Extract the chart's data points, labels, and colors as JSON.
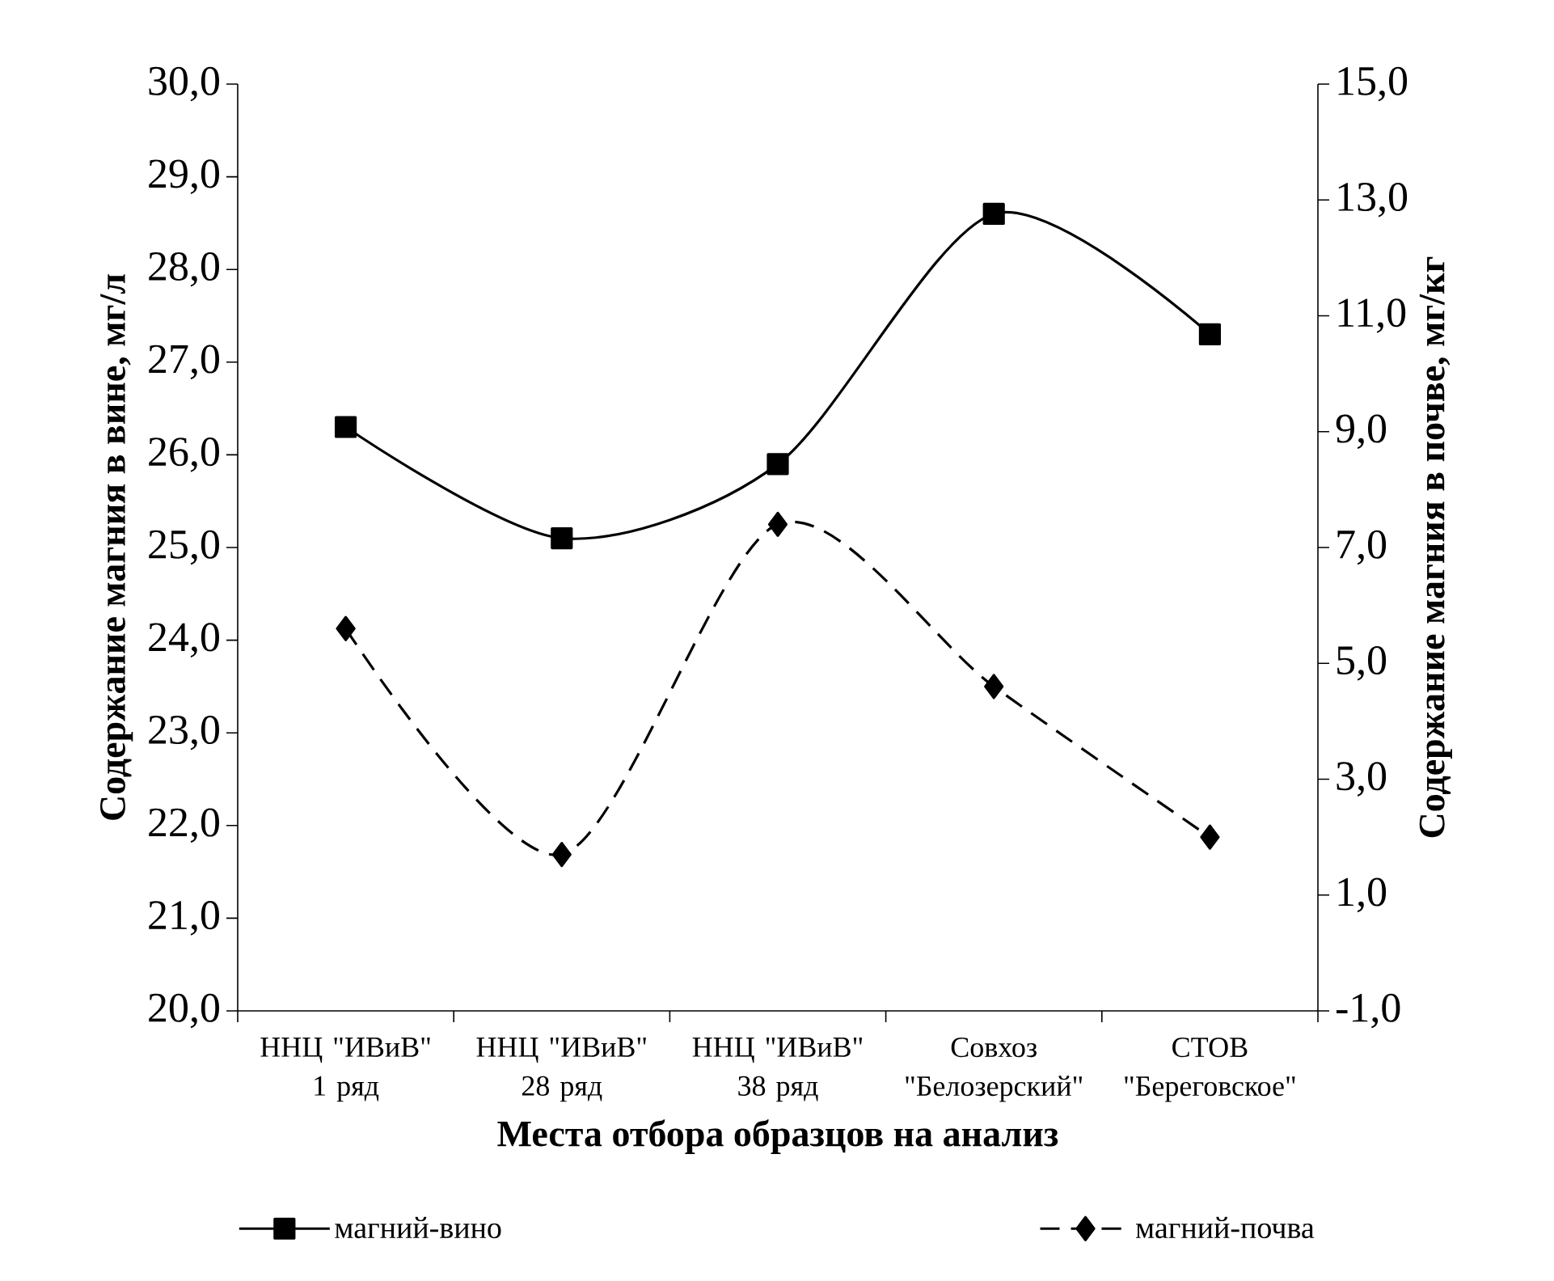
{
  "chart_data": {
    "type": "line",
    "xlabel": "Места отбора образцов на анализ",
    "ylabel": "Содержание магния в вине, мг/л",
    "y2label": "Содержание магния в почве, мг/кг",
    "categories": [
      "ННЦ \"ИВиВ\" 1 ряд",
      "ННЦ \"ИВиВ\" 28 ряд",
      "ННЦ \"ИВиВ\" 38 ряд",
      "Совхоз \"Белозерский\"",
      "СТОВ \"Береговское\""
    ],
    "series": [
      {
        "name": "магний-вино",
        "color": "#000000",
        "marker": "square",
        "line_style": "solid",
        "values": [
          26.3,
          25.1,
          25.9,
          28.6,
          27.3
        ]
      },
      {
        "name": "магний-почва",
        "color": "#000000",
        "marker": "diamond",
        "line_style": "dashed",
        "axis": "y2",
        "values": [
          5.6,
          1.7,
          7.4,
          4.6,
          2.0
        ]
      }
    ],
    "ylim": [
      20,
      30
    ],
    "yticks": [
      {
        "value": 20,
        "label": "20,0"
      },
      {
        "value": 21,
        "label": "21,0"
      },
      {
        "value": 22,
        "label": "22,0"
      },
      {
        "value": 23,
        "label": "23,0"
      },
      {
        "value": 24,
        "label": "24,0"
      },
      {
        "value": 25,
        "label": "25,0"
      },
      {
        "value": 26,
        "label": "26,0"
      },
      {
        "value": 27,
        "label": "27,0"
      },
      {
        "value": 28,
        "label": "28,0"
      },
      {
        "value": 29,
        "label": "29,0"
      },
      {
        "value": 30,
        "label": "30,0"
      }
    ],
    "y2lim": [
      -1,
      15
    ],
    "y2ticks": [
      {
        "value": -1,
        "label": "-1,0"
      },
      {
        "value": 1,
        "label": "1,0"
      },
      {
        "value": 3,
        "label": "3,0"
      },
      {
        "value": 5,
        "label": "5,0"
      },
      {
        "value": 7,
        "label": "7,0"
      },
      {
        "value": 9,
        "label": "9,0"
      },
      {
        "value": 11,
        "label": "11,0"
      },
      {
        "value": 13,
        "label": "13,0"
      },
      {
        "value": 15,
        "label": "15,0"
      }
    ],
    "legend": "bottom",
    "grid": false
  }
}
